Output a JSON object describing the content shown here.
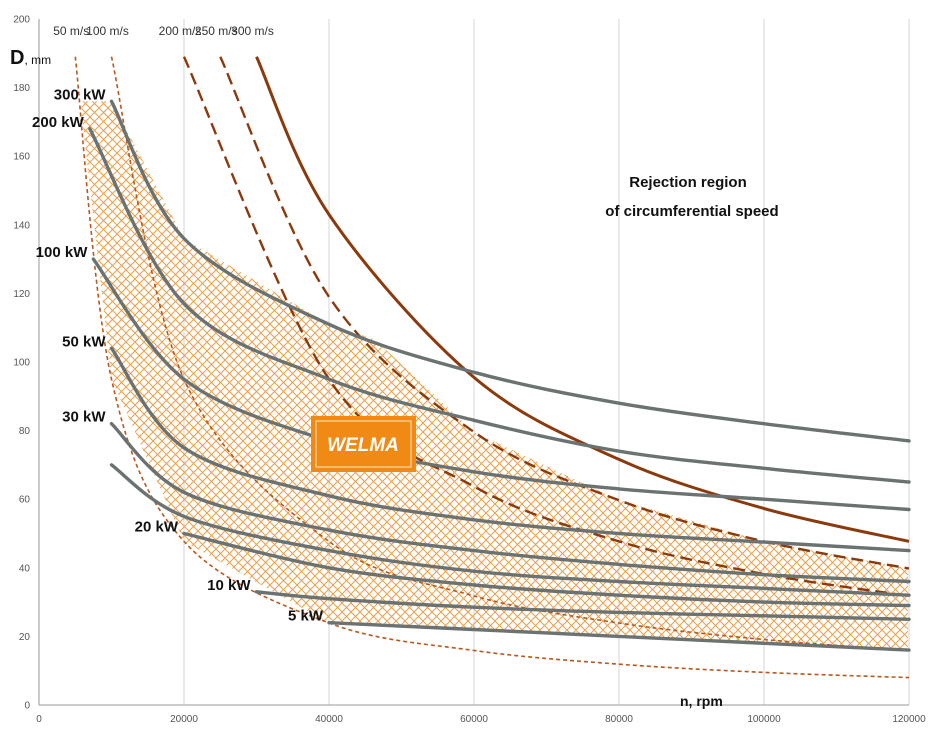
{
  "chart_data": {
    "type": "line",
    "xlabel": "n, rpm",
    "ylabel_main": "D",
    "ylabel_unit": ", mm",
    "xlim": [
      0,
      120000
    ],
    "ylim": [
      0,
      200
    ],
    "x_ticks": [
      0,
      20000,
      40000,
      60000,
      80000,
      100000,
      120000
    ],
    "y_ticks": [
      0,
      20,
      40,
      60,
      80,
      100,
      120,
      140,
      160,
      180,
      200
    ],
    "grid": "vertical",
    "region_label": [
      "Rejection region",
      "of circumferential speed"
    ],
    "brand_label": "WELMA",
    "speed_series": [
      {
        "name": "50 m/s",
        "style": "dashed-thin",
        "x": [
          5000,
          10000,
          20000,
          40000,
          60000,
          80000,
          100000,
          120000
        ],
        "y": [
          189,
          95,
          47.7,
          23.9,
          15.9,
          11.9,
          9.5,
          8.0
        ]
      },
      {
        "name": "100 m/s",
        "style": "dashed-thin",
        "x": [
          10000,
          20000,
          40000,
          60000,
          80000,
          100000,
          120000
        ],
        "y": [
          189,
          95,
          47.7,
          31.8,
          23.9,
          19.1,
          15.9
        ]
      },
      {
        "name": "200 m/s",
        "style": "dashed-thick",
        "x": [
          20000,
          40000,
          60000,
          80000,
          100000,
          120000
        ],
        "y": [
          189,
          95,
          63.7,
          47.7,
          38.2,
          31.8
        ]
      },
      {
        "name": "250 m/s",
        "style": "dashed-thick",
        "x": [
          25000,
          40000,
          60000,
          80000,
          100000,
          120000
        ],
        "y": [
          189,
          119,
          79.6,
          59.7,
          47.7,
          39.8
        ]
      },
      {
        "name": "300 m/s",
        "style": "solid-thick",
        "x": [
          30000,
          40000,
          60000,
          80000,
          100000,
          120000
        ],
        "y": [
          189,
          143,
          95.5,
          71.6,
          57.3,
          47.7
        ]
      }
    ],
    "power_series": [
      {
        "name": "300 kW",
        "x": [
          10000,
          20000,
          40000,
          60000,
          80000,
          100000,
          120000
        ],
        "y": [
          176,
          136,
          111,
          97,
          88,
          82,
          77
        ]
      },
      {
        "name": "200 kW",
        "x": [
          7000,
          20000,
          40000,
          60000,
          80000,
          100000,
          120000
        ],
        "y": [
          168,
          117,
          95,
          83,
          74,
          69,
          65
        ]
      },
      {
        "name": "100 kW",
        "x": [
          7500,
          20000,
          40000,
          60000,
          80000,
          100000,
          120000
        ],
        "y": [
          130,
          95,
          77,
          68,
          63,
          60,
          57
        ]
      },
      {
        "name": "50 kW",
        "x": [
          10000,
          20000,
          40000,
          60000,
          80000,
          100000,
          120000
        ],
        "y": [
          104,
          75,
          61,
          54,
          50,
          47.5,
          45
        ]
      },
      {
        "name": "30 kW",
        "x": [
          10000,
          20000,
          40000,
          60000,
          80000,
          100000,
          120000
        ],
        "y": [
          82,
          62,
          51,
          45,
          41,
          38,
          36
        ]
      },
      {
        "name": "",
        "x": [
          10000,
          20000,
          40000,
          60000,
          80000,
          100000,
          120000
        ],
        "y": [
          70,
          55,
          45,
          39,
          36,
          34,
          32
        ]
      },
      {
        "name": "20 kW",
        "x": [
          20000,
          40000,
          60000,
          80000,
          100000,
          120000
        ],
        "y": [
          50,
          40,
          35,
          32,
          30,
          29
        ]
      },
      {
        "name": "10 kW",
        "x": [
          30000,
          40000,
          60000,
          80000,
          100000,
          120000
        ],
        "y": [
          33,
          31,
          28.5,
          27,
          26,
          25
        ]
      },
      {
        "name": "5 kW",
        "x": [
          40000,
          60000,
          80000,
          100000,
          120000
        ],
        "y": [
          24,
          22,
          20,
          18,
          16
        ]
      }
    ],
    "colors": {
      "power_line": "#6b7272",
      "speed_line": "#8b3a0e",
      "speed_line_thin": "#b8581c",
      "hatch": "#e8a04a",
      "brand_fill": "#f08a14",
      "grid": "#d4d4d4"
    }
  }
}
